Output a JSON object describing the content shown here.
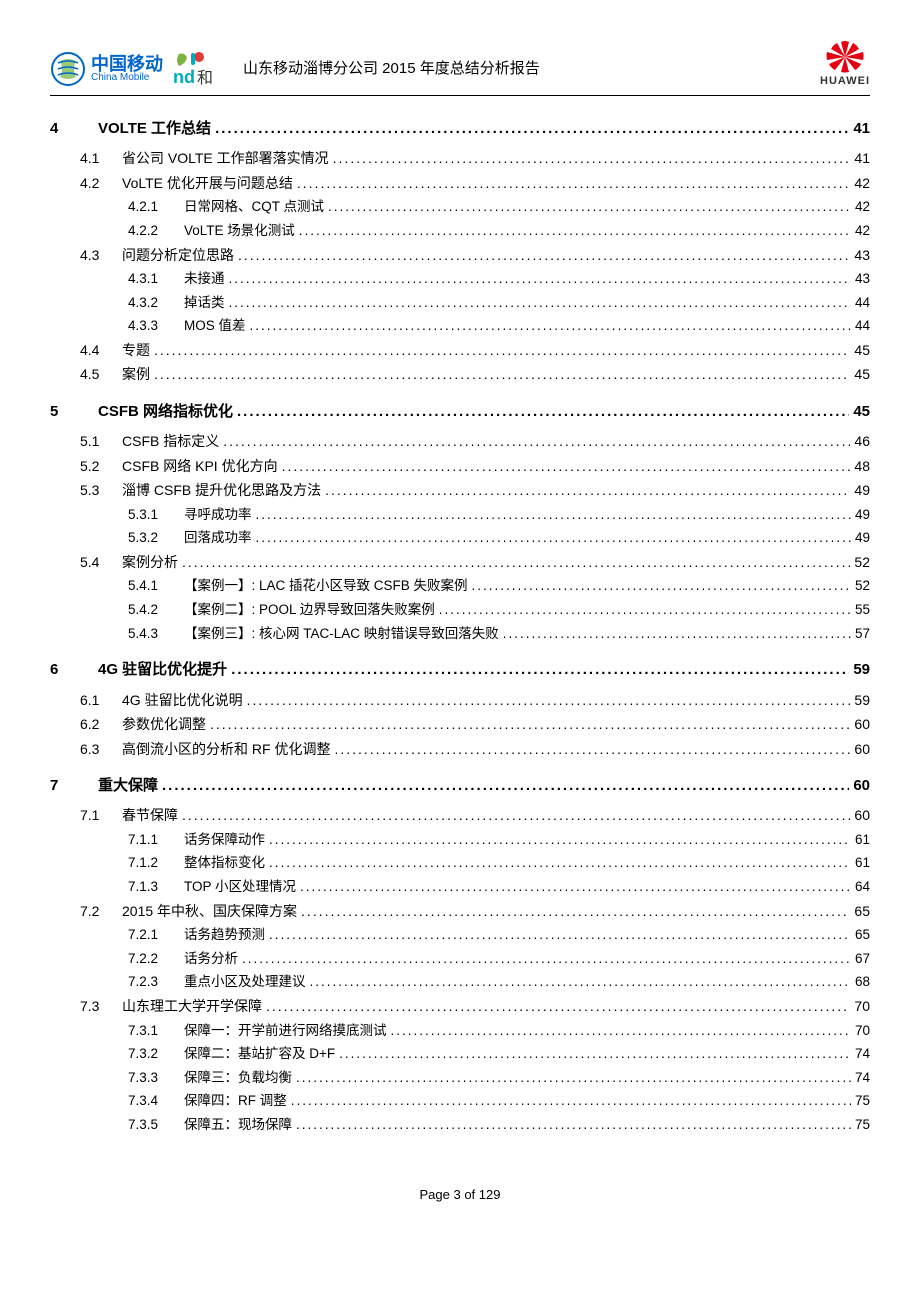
{
  "header": {
    "title": "山东移动淄博分公司 2015 年度总结分析报告",
    "logo_cm_cn": "中国移动",
    "logo_cm_en": "China Mobile",
    "logo_nahe_na": "n",
    "logo_nahe_he": "和",
    "logo_huawei": "HUAWEI"
  },
  "toc": [
    {
      "level": 1,
      "num": "4",
      "title": "VOLTE 工作总结",
      "page": "41"
    },
    {
      "level": 2,
      "num": "4.1",
      "title": "省公司 VOLTE 工作部署落实情况",
      "page": "41"
    },
    {
      "level": 2,
      "num": "4.2",
      "title": "VoLTE 优化开展与问题总结",
      "page": "42"
    },
    {
      "level": 3,
      "num": "4.2.1",
      "title": "日常网格、CQT 点测试",
      "page": "42"
    },
    {
      "level": 3,
      "num": "4.2.2",
      "title": "VoLTE 场景化测试",
      "page": "42"
    },
    {
      "level": 2,
      "num": "4.3",
      "title": "问题分析定位思路",
      "page": "43"
    },
    {
      "level": 3,
      "num": "4.3.1",
      "title": "未接通",
      "page": "43"
    },
    {
      "level": 3,
      "num": "4.3.2",
      "title": "掉话类",
      "page": "44"
    },
    {
      "level": 3,
      "num": "4.3.3",
      "title": "MOS 值差",
      "page": "44"
    },
    {
      "level": 2,
      "num": "4.4",
      "title": "专题",
      "page": "45"
    },
    {
      "level": 2,
      "num": "4.5",
      "title": "案例",
      "page": "45"
    },
    {
      "level": 1,
      "num": "5",
      "title": "CSFB 网络指标优化",
      "page": "45"
    },
    {
      "level": 2,
      "num": "5.1",
      "title": "CSFB 指标定义",
      "page": "46"
    },
    {
      "level": 2,
      "num": "5.2",
      "title": "CSFB 网络 KPI 优化方向",
      "page": "48"
    },
    {
      "level": 2,
      "num": "5.3",
      "title": "淄博 CSFB 提升优化思路及方法",
      "page": "49"
    },
    {
      "level": 3,
      "num": "5.3.1",
      "title": "寻呼成功率",
      "page": "49"
    },
    {
      "level": 3,
      "num": "5.3.2",
      "title": "回落成功率",
      "page": "49"
    },
    {
      "level": 2,
      "num": "5.4",
      "title": "案例分析",
      "page": "52"
    },
    {
      "level": 3,
      "num": "5.4.1",
      "title": "【案例一】: LAC 插花小区导致 CSFB 失败案例",
      "page": "52"
    },
    {
      "level": 3,
      "num": "5.4.2",
      "title": "【案例二】: POOL 边界导致回落失败案例",
      "page": "55"
    },
    {
      "level": 3,
      "num": "5.4.3",
      "title": "【案例三】: 核心网 TAC-LAC 映射错误导致回落失败",
      "page": "57"
    },
    {
      "level": 1,
      "num": "6",
      "title": "4G 驻留比优化提升",
      "page": "59"
    },
    {
      "level": 2,
      "num": "6.1",
      "title": "4G 驻留比优化说明",
      "page": "59"
    },
    {
      "level": 2,
      "num": "6.2",
      "title": "参数优化调整",
      "page": "60"
    },
    {
      "level": 2,
      "num": "6.3",
      "title": "高倒流小区的分析和 RF 优化调整",
      "page": "60"
    },
    {
      "level": 1,
      "num": "7",
      "title": "重大保障",
      "page": "60"
    },
    {
      "level": 2,
      "num": "7.1",
      "title": "春节保障",
      "page": "60"
    },
    {
      "level": 3,
      "num": "7.1.1",
      "title": "话务保障动作",
      "page": "61"
    },
    {
      "level": 3,
      "num": "7.1.2",
      "title": "整体指标变化",
      "page": "61"
    },
    {
      "level": 3,
      "num": "7.1.3",
      "title": "TOP 小区处理情况",
      "page": "64"
    },
    {
      "level": 2,
      "num": "7.2",
      "title": "2015 年中秋、国庆保障方案",
      "page": "65"
    },
    {
      "level": 3,
      "num": "7.2.1",
      "title": "话务趋势预测",
      "page": "65"
    },
    {
      "level": 3,
      "num": "7.2.2",
      "title": "话务分析",
      "page": "67"
    },
    {
      "level": 3,
      "num": "7.2.3",
      "title": "重点小区及处理建议",
      "page": "68"
    },
    {
      "level": 2,
      "num": "7.3",
      "title": "山东理工大学开学保障",
      "page": "70"
    },
    {
      "level": 3,
      "num": "7.3.1",
      "title": "保障一：开学前进行网络摸底测试",
      "page": "70"
    },
    {
      "level": 3,
      "num": "7.3.2",
      "title": "保障二：基站扩容及 D+F",
      "page": "74"
    },
    {
      "level": 3,
      "num": "7.3.3",
      "title": "保障三：负载均衡",
      "page": "74"
    },
    {
      "level": 3,
      "num": "7.3.4",
      "title": "保障四：RF 调整",
      "page": "75"
    },
    {
      "level": 3,
      "num": "7.3.5",
      "title": "保障五：现场保障",
      "page": "75"
    }
  ],
  "footer": {
    "page_text": "Page 3 of 129"
  },
  "colors": {
    "cm_blue": "#0066cc",
    "nahe_green": "#7cb342",
    "nahe_red": "#e53935",
    "nahe_cyan": "#00acc1",
    "huawei_red": "#e60012",
    "text": "#000000",
    "background": "#ffffff"
  }
}
